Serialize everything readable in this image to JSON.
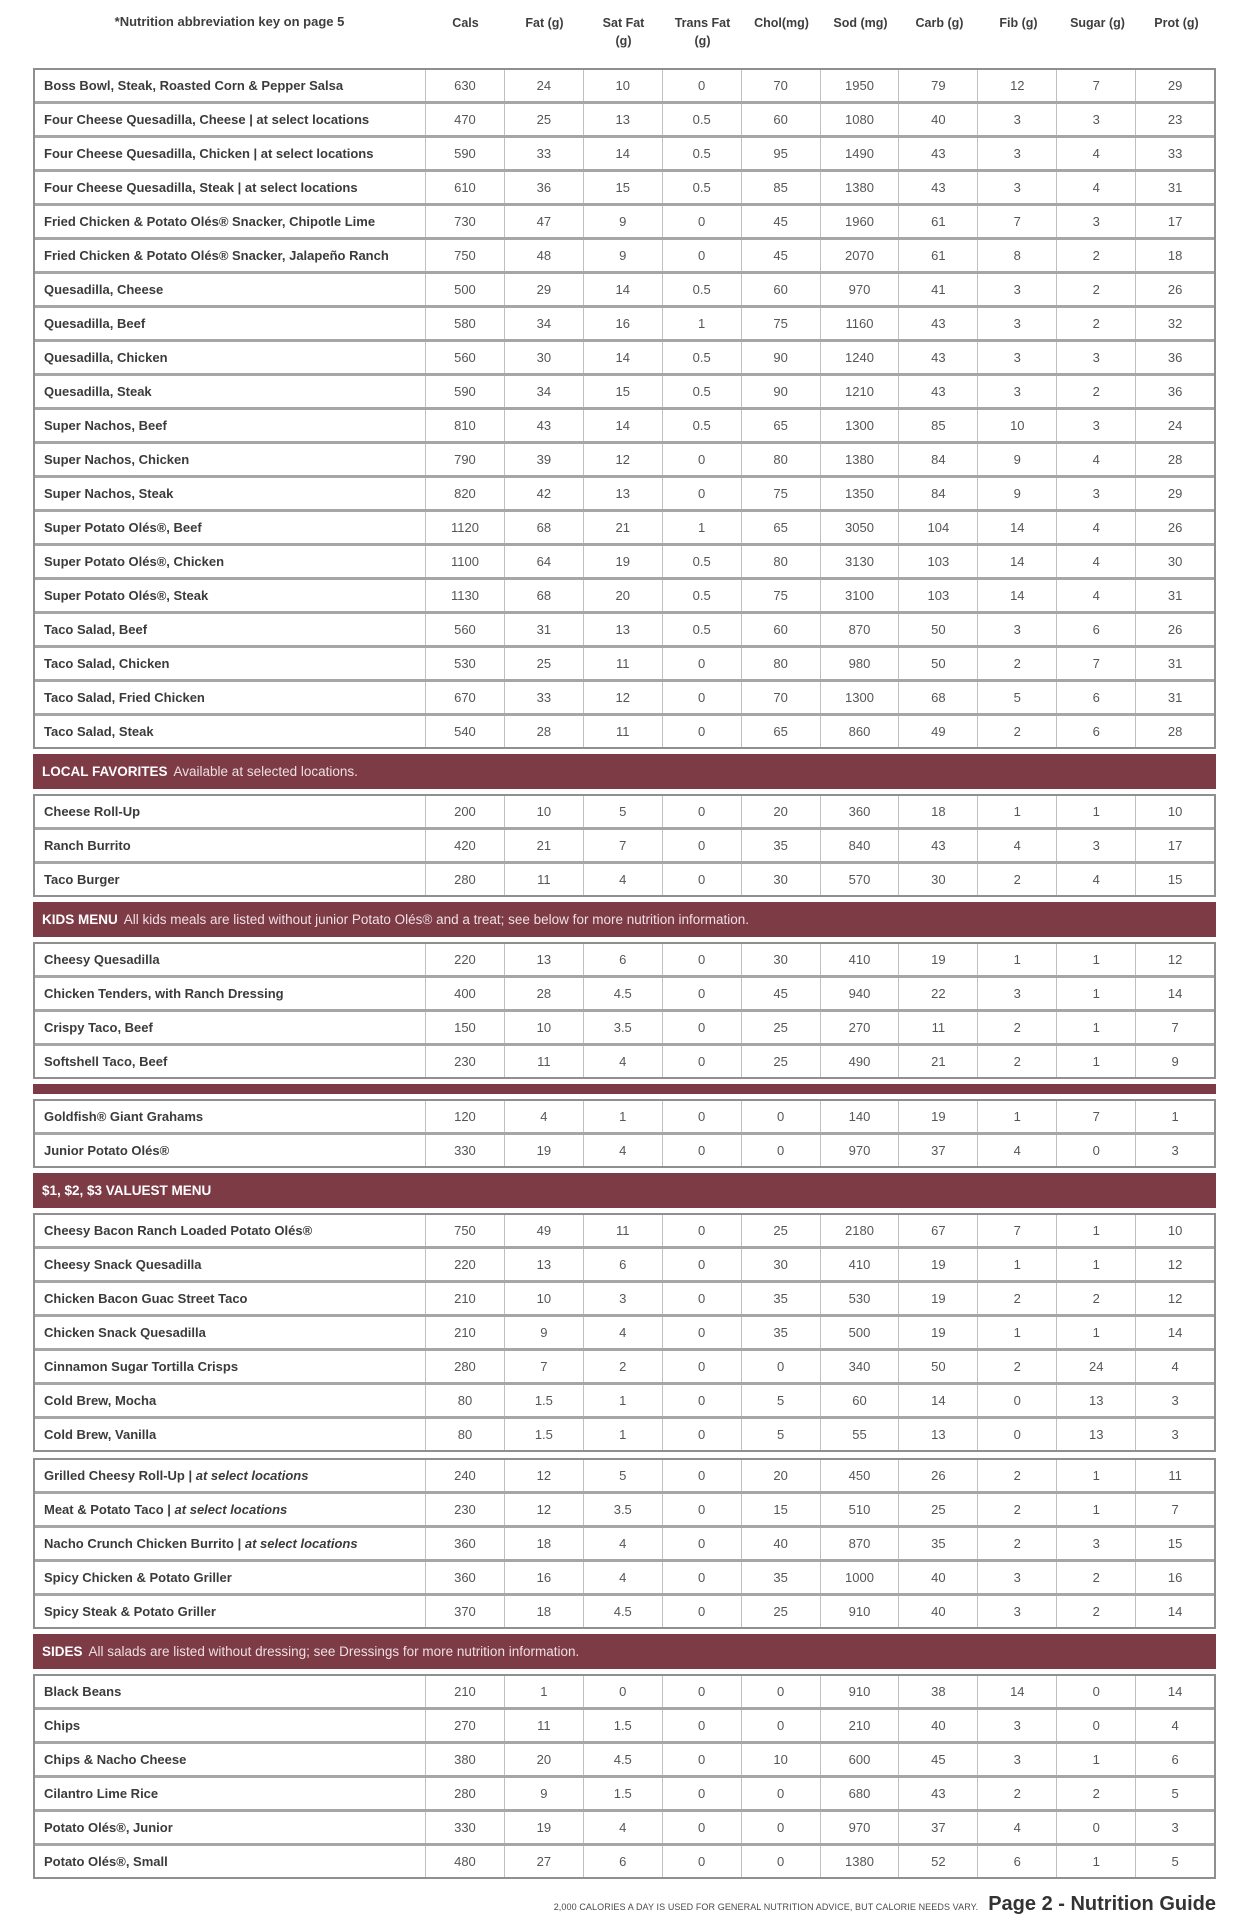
{
  "header": {
    "key_note": "*Nutrition abbreviation key on page 5",
    "columns": [
      "Cals",
      "Fat (g)",
      "Sat Fat (g)",
      "Trans Fat (g)",
      "Chol(mg)",
      "Sod (mg)",
      "Carb (g)",
      "Fib (g)",
      "Sugar (g)",
      "Prot (g)"
    ]
  },
  "colors": {
    "band_bg": "#7D3B46",
    "row_border": "#a6a6a6",
    "col_border": "#c0c0c0",
    "outer_border": "#8f8f8f",
    "name_text": "#3b3b3b",
    "value_text": "#565656",
    "band_text": "#ffffff"
  },
  "sections": [
    {
      "kind": "group",
      "rows": [
        {
          "name": "Boss Bowl, Steak, Roasted Corn & Pepper Salsa",
          "values": [
            "630",
            "24",
            "10",
            "0",
            "70",
            "1950",
            "79",
            "12",
            "7",
            "29"
          ]
        },
        {
          "name": "Four Cheese Quesadilla, Cheese | at select locations",
          "values": [
            "470",
            "25",
            "13",
            "0.5",
            "60",
            "1080",
            "40",
            "3",
            "3",
            "23"
          ]
        },
        {
          "name": "Four Cheese Quesadilla, Chicken | at select locations",
          "values": [
            "590",
            "33",
            "14",
            "0.5",
            "95",
            "1490",
            "43",
            "3",
            "4",
            "33"
          ]
        },
        {
          "name": "Four Cheese Quesadilla, Steak | at select locations",
          "values": [
            "610",
            "36",
            "15",
            "0.5",
            "85",
            "1380",
            "43",
            "3",
            "4",
            "31"
          ]
        },
        {
          "name": "Fried Chicken & Potato Olés® Snacker, Chipotle Lime",
          "values": [
            "730",
            "47",
            "9",
            "0",
            "45",
            "1960",
            "61",
            "7",
            "3",
            "17"
          ]
        },
        {
          "name": "Fried Chicken & Potato Olés® Snacker, Jalapeño Ranch",
          "values": [
            "750",
            "48",
            "9",
            "0",
            "45",
            "2070",
            "61",
            "8",
            "2",
            "18"
          ]
        },
        {
          "name": "Quesadilla, Cheese",
          "values": [
            "500",
            "29",
            "14",
            "0.5",
            "60",
            "970",
            "41",
            "3",
            "2",
            "26"
          ]
        },
        {
          "name": "Quesadilla, Beef",
          "values": [
            "580",
            "34",
            "16",
            "1",
            "75",
            "1160",
            "43",
            "3",
            "2",
            "32"
          ]
        },
        {
          "name": "Quesadilla, Chicken",
          "values": [
            "560",
            "30",
            "14",
            "0.5",
            "90",
            "1240",
            "43",
            "3",
            "3",
            "36"
          ]
        },
        {
          "name": "Quesadilla, Steak",
          "values": [
            "590",
            "34",
            "15",
            "0.5",
            "90",
            "1210",
            "43",
            "3",
            "2",
            "36"
          ]
        },
        {
          "name": "Super Nachos, Beef",
          "values": [
            "810",
            "43",
            "14",
            "0.5",
            "65",
            "1300",
            "85",
            "10",
            "3",
            "24"
          ]
        },
        {
          "name": "Super Nachos, Chicken",
          "values": [
            "790",
            "39",
            "12",
            "0",
            "80",
            "1380",
            "84",
            "9",
            "4",
            "28"
          ]
        },
        {
          "name": "Super Nachos, Steak",
          "values": [
            "820",
            "42",
            "13",
            "0",
            "75",
            "1350",
            "84",
            "9",
            "3",
            "29"
          ]
        },
        {
          "name": "Super Potato Olés®, Beef",
          "values": [
            "1120",
            "68",
            "21",
            "1",
            "65",
            "3050",
            "104",
            "14",
            "4",
            "26"
          ]
        },
        {
          "name": "Super Potato Olés®, Chicken",
          "values": [
            "1100",
            "64",
            "19",
            "0.5",
            "80",
            "3130",
            "103",
            "14",
            "4",
            "30"
          ]
        },
        {
          "name": "Super Potato Olés®, Steak",
          "values": [
            "1130",
            "68",
            "20",
            "0.5",
            "75",
            "3100",
            "103",
            "14",
            "4",
            "31"
          ]
        },
        {
          "name": "Taco Salad, Beef",
          "values": [
            "560",
            "31",
            "13",
            "0.5",
            "60",
            "870",
            "50",
            "3",
            "6",
            "26"
          ]
        },
        {
          "name": "Taco Salad, Chicken",
          "values": [
            "530",
            "25",
            "11",
            "0",
            "80",
            "980",
            "50",
            "2",
            "7",
            "31"
          ]
        },
        {
          "name": "Taco Salad, Fried Chicken",
          "values": [
            "670",
            "33",
            "12",
            "0",
            "70",
            "1300",
            "68",
            "5",
            "6",
            "31"
          ]
        },
        {
          "name": "Taco Salad, Steak",
          "values": [
            "540",
            "28",
            "11",
            "0",
            "65",
            "860",
            "49",
            "2",
            "6",
            "28"
          ]
        }
      ]
    },
    {
      "kind": "band",
      "title": "LOCAL FAVORITES",
      "desc": "Available at selected locations."
    },
    {
      "kind": "group",
      "rows": [
        {
          "name": "Cheese Roll-Up",
          "values": [
            "200",
            "10",
            "5",
            "0",
            "20",
            "360",
            "18",
            "1",
            "1",
            "10"
          ]
        },
        {
          "name": "Ranch Burrito",
          "values": [
            "420",
            "21",
            "7",
            "0",
            "35",
            "840",
            "43",
            "4",
            "3",
            "17"
          ]
        },
        {
          "name": "Taco Burger",
          "values": [
            "280",
            "11",
            "4",
            "0",
            "30",
            "570",
            "30",
            "2",
            "4",
            "15"
          ]
        }
      ]
    },
    {
      "kind": "band",
      "title": "KIDS MENU",
      "desc": "All kids meals are listed without junior Potato Olés® and a treat; see below for more nutrition information."
    },
    {
      "kind": "group",
      "rows": [
        {
          "name": "Cheesy Quesadilla",
          "values": [
            "220",
            "13",
            "6",
            "0",
            "30",
            "410",
            "19",
            "1",
            "1",
            "12"
          ]
        },
        {
          "name": "Chicken Tenders, with Ranch Dressing",
          "values": [
            "400",
            "28",
            "4.5",
            "0",
            "45",
            "940",
            "22",
            "3",
            "1",
            "14"
          ]
        },
        {
          "name": "Crispy Taco, Beef",
          "values": [
            "150",
            "10",
            "3.5",
            "0",
            "25",
            "270",
            "11",
            "2",
            "1",
            "7"
          ]
        },
        {
          "name": "Softshell Taco, Beef",
          "values": [
            "230",
            "11",
            "4",
            "0",
            "25",
            "490",
            "21",
            "2",
            "1",
            "9"
          ]
        }
      ]
    },
    {
      "kind": "divider"
    },
    {
      "kind": "group",
      "rows": [
        {
          "name": "Goldfish® Giant Grahams",
          "values": [
            "120",
            "4",
            "1",
            "0",
            "0",
            "140",
            "19",
            "1",
            "7",
            "1"
          ]
        },
        {
          "name": "Junior Potato Olés®",
          "values": [
            "330",
            "19",
            "4",
            "0",
            "0",
            "970",
            "37",
            "4",
            "0",
            "3"
          ]
        }
      ]
    },
    {
      "kind": "band",
      "title": "$1, $2, $3 VALUEST MENU",
      "desc": ""
    },
    {
      "kind": "group",
      "rows": [
        {
          "name": "Cheesy Bacon Ranch Loaded Potato Olés®",
          "values": [
            "750",
            "49",
            "11",
            "0",
            "25",
            "2180",
            "67",
            "7",
            "1",
            "10"
          ]
        },
        {
          "name": "Cheesy Snack Quesadilla",
          "values": [
            "220",
            "13",
            "6",
            "0",
            "30",
            "410",
            "19",
            "1",
            "1",
            "12"
          ]
        },
        {
          "name": "Chicken Bacon Guac Street Taco",
          "values": [
            "210",
            "10",
            "3",
            "0",
            "35",
            "530",
            "19",
            "2",
            "2",
            "12"
          ]
        },
        {
          "name": "Chicken Snack Quesadilla",
          "values": [
            "210",
            "9",
            "4",
            "0",
            "35",
            "500",
            "19",
            "1",
            "1",
            "14"
          ]
        },
        {
          "name": "Cinnamon Sugar Tortilla Crisps",
          "values": [
            "280",
            "7",
            "2",
            "0",
            "0",
            "340",
            "50",
            "2",
            "24",
            "4"
          ]
        },
        {
          "name": "Cold Brew, Mocha",
          "values": [
            "80",
            "1.5",
            "1",
            "0",
            "5",
            "60",
            "14",
            "0",
            "13",
            "3"
          ]
        },
        {
          "name": "Cold Brew, Vanilla",
          "values": [
            "80",
            "1.5",
            "1",
            "0",
            "5",
            "55",
            "13",
            "0",
            "13",
            "3"
          ]
        }
      ]
    },
    {
      "kind": "group",
      "rows": [
        {
          "name": "Grilled Cheesy Roll-Up",
          "note": "at select locations",
          "values": [
            "240",
            "12",
            "5",
            "0",
            "20",
            "450",
            "26",
            "2",
            "1",
            "11"
          ]
        },
        {
          "name": "Meat & Potato Taco",
          "note": "at select locations",
          "values": [
            "230",
            "12",
            "3.5",
            "0",
            "15",
            "510",
            "25",
            "2",
            "1",
            "7"
          ]
        },
        {
          "name": "Nacho Crunch Chicken Burrito",
          "note": "at select locations",
          "values": [
            "360",
            "18",
            "4",
            "0",
            "40",
            "870",
            "35",
            "2",
            "3",
            "15"
          ]
        },
        {
          "name": "Spicy Chicken & Potato Griller",
          "values": [
            "360",
            "16",
            "4",
            "0",
            "35",
            "1000",
            "40",
            "3",
            "2",
            "16"
          ]
        },
        {
          "name": "Spicy Steak & Potato Griller",
          "values": [
            "370",
            "18",
            "4.5",
            "0",
            "25",
            "910",
            "40",
            "3",
            "2",
            "14"
          ]
        }
      ]
    },
    {
      "kind": "band",
      "title": "SIDES",
      "desc": "All salads are listed without dressing; see Dressings for more nutrition information."
    },
    {
      "kind": "group",
      "rows": [
        {
          "name": "Black Beans",
          "values": [
            "210",
            "1",
            "0",
            "0",
            "0",
            "910",
            "38",
            "14",
            "0",
            "14"
          ]
        },
        {
          "name": "Chips",
          "values": [
            "270",
            "11",
            "1.5",
            "0",
            "0",
            "210",
            "40",
            "3",
            "0",
            "4"
          ]
        },
        {
          "name": "Chips & Nacho Cheese",
          "values": [
            "380",
            "20",
            "4.5",
            "0",
            "10",
            "600",
            "45",
            "3",
            "1",
            "6"
          ]
        },
        {
          "name": "Cilantro Lime Rice",
          "values": [
            "280",
            "9",
            "1.5",
            "0",
            "0",
            "680",
            "43",
            "2",
            "2",
            "5"
          ]
        },
        {
          "name": "Potato Olés®, Junior",
          "values": [
            "330",
            "19",
            "4",
            "0",
            "0",
            "970",
            "37",
            "4",
            "0",
            "3"
          ]
        },
        {
          "name": "Potato Olés®, Small",
          "values": [
            "480",
            "27",
            "6",
            "0",
            "0",
            "1380",
            "52",
            "6",
            "1",
            "5"
          ]
        }
      ]
    }
  ],
  "footer": {
    "disclaimer": "2,000 CALORIES A DAY IS USED FOR GENERAL NUTRITION ADVICE, BUT CALORIE NEEDS VARY.",
    "page_label": "Page 2 - Nutrition Guide"
  }
}
